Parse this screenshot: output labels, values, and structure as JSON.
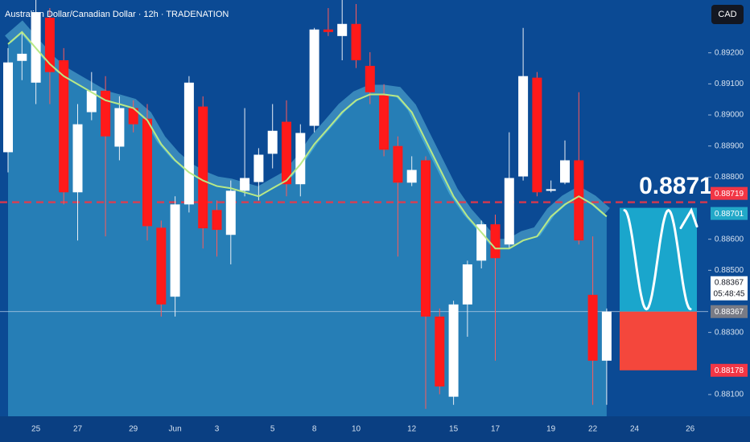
{
  "chart_data": {
    "type": "candlestick",
    "title": "Australian Dollar/Canadian Dollar · 12h · TRADENATION",
    "currency": "CAD",
    "categories": [
      null,
      null,
      "25",
      null,
      null,
      "27",
      null,
      null,
      null,
      "29",
      null,
      null,
      "Jun",
      null,
      null,
      "3",
      null,
      null,
      null,
      "5",
      null,
      null,
      "8",
      null,
      null,
      "10",
      null,
      null,
      null,
      "12",
      null,
      null,
      "15",
      null,
      null,
      "17",
      null,
      null,
      null,
      "19",
      null,
      null,
      "22",
      null,
      null,
      "24",
      null,
      null,
      null,
      "26"
    ],
    "open": [
      0.8888,
      0.89174,
      0.89104,
      0.89313,
      0.89176,
      0.88751,
      0.89009,
      0.89078,
      0.88898,
      0.89022,
      0.88988,
      0.88637,
      0.88415,
      0.88712,
      0.89027,
      0.88694,
      0.88614,
      0.88756,
      0.88784,
      0.88875,
      0.88978,
      0.88777,
      0.88965,
      0.89275,
      0.89254,
      0.89293,
      0.89158,
      0.89066,
      0.889,
      0.88782,
      0.88854,
      0.88351,
      0.88093,
      0.8839,
      0.88531,
      0.88648,
      0.88583,
      0.88802,
      0.8912,
      0.88756,
      0.88782,
      0.88854,
      0.88421,
      0.88209,
      null,
      null,
      null,
      null,
      null,
      null
    ],
    "high": [
      0.89215,
      0.89267,
      0.8937,
      0.89344,
      0.89215,
      0.89035,
      0.89138,
      0.89125,
      0.8906,
      0.89047,
      0.89035,
      0.8866,
      0.88738,
      0.89125,
      0.8906,
      0.88725,
      0.88789,
      0.89022,
      0.88893,
      0.89035,
      0.89047,
      0.8897,
      0.8928,
      0.89344,
      0.8937,
      0.89357,
      0.89202,
      0.89099,
      0.88931,
      0.88867,
      0.88867,
      0.88377,
      0.88402,
      0.88531,
      0.8866,
      0.88679,
      0.88944,
      0.8928,
      0.89138,
      0.88789,
      0.88918,
      0.89073,
      0.88609,
      0.88377,
      null,
      null,
      null,
      null,
      null,
      null
    ],
    "low": [
      0.88815,
      0.89112,
      0.89035,
      0.89035,
      0.88712,
      0.88596,
      0.88983,
      0.88609,
      0.88854,
      0.88944,
      0.88596,
      0.88351,
      0.88351,
      0.88686,
      0.8857,
      0.88544,
      0.88519,
      0.88738,
      0.88725,
      0.88828,
      0.88738,
      0.88738,
      0.88944,
      0.89254,
      0.89176,
      0.89151,
      0.89035,
      0.88867,
      0.88544,
      0.88771,
      0.88054,
      0.88101,
      0.88067,
      0.88286,
      0.88506,
      0.88209,
      0.8857,
      0.88789,
      0.88738,
      0.88751,
      0.88777,
      0.88583,
      0.88067,
      0.88067,
      null,
      null,
      null,
      null,
      null,
      null
    ],
    "close": [
      0.89169,
      0.89197,
      0.89331,
      0.89138,
      0.88751,
      0.8897,
      0.89078,
      0.88931,
      0.89022,
      0.8897,
      0.88642,
      0.8839,
      0.88712,
      0.89104,
      0.88635,
      0.8863,
      0.88756,
      0.88797,
      0.88872,
      0.88949,
      0.88777,
      0.88942,
      0.89275,
      0.89267,
      0.89293,
      0.89176,
      0.89073,
      0.88888,
      0.88782,
      0.88823,
      0.88351,
      0.88126,
      0.8839,
      0.88519,
      0.88648,
      0.88539,
      0.88797,
      0.89125,
      0.88751,
      0.88761,
      0.88854,
      0.88596,
      0.88209,
      0.88367,
      null,
      null,
      null,
      null,
      null,
      null
    ],
    "up_color": "#ffffff",
    "down_color": "#ff1a1a",
    "ma": {
      "color": "#b8e986",
      "values": [
        0.89228,
        0.89267,
        0.89215,
        0.89164,
        0.89125,
        0.89099,
        0.89073,
        0.89047,
        0.89035,
        0.89022,
        0.88983,
        0.88906,
        0.88854,
        0.88815,
        0.88789,
        0.88771,
        0.88764,
        0.88751,
        0.88738,
        0.88764,
        0.88789,
        0.88841,
        0.88906,
        0.88957,
        0.89009,
        0.89047,
        0.89066,
        0.89066,
        0.8906,
        0.89009,
        0.88918,
        0.88828,
        0.88738,
        0.88673,
        0.88622,
        0.8857,
        0.8857,
        0.88596,
        0.88609,
        0.88673,
        0.88712,
        0.88738,
        0.88712,
        0.88673,
        null,
        null,
        null,
        null,
        null,
        null
      ]
    },
    "ylim": [
      0.8803,
      0.8937
    ],
    "yticks": [
      {
        "value": 0.892,
        "label": "0.89200"
      },
      {
        "value": 0.891,
        "label": "0.89100"
      },
      {
        "value": 0.89,
        "label": "0.89000"
      },
      {
        "value": 0.889,
        "label": "0.88900"
      },
      {
        "value": 0.888,
        "label": "0.88800"
      },
      {
        "value": 0.886,
        "label": "0.88600"
      },
      {
        "value": 0.885,
        "label": "0.88500"
      },
      {
        "value": 0.883,
        "label": "0.88300"
      },
      {
        "value": 0.881,
        "label": "0.88100"
      }
    ],
    "levels": [
      {
        "value": 0.88719,
        "label": "0.88719",
        "color": "#f23645"
      },
      {
        "value": 0.88701,
        "label": "0.88701",
        "color": "#22a8c8"
      },
      {
        "value": 0.88367,
        "label": "0.88367",
        "color": "#787b86"
      },
      {
        "value": 0.88178,
        "label": "0.88178",
        "color": "#f23645"
      }
    ],
    "last_price": {
      "value": 0.88367,
      "label": "0.88367",
      "countdown": "05:48:45"
    },
    "annotation": {
      "value": 0.8871,
      "label": "0.8871"
    }
  }
}
